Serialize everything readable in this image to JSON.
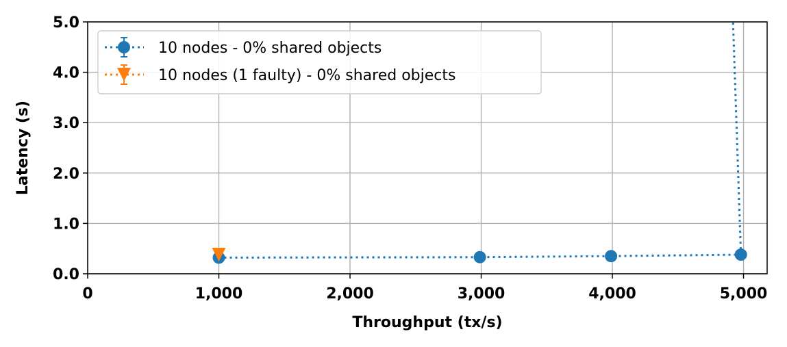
{
  "chart_data": {
    "type": "line",
    "title": "",
    "xlabel": "Throughput (tx/s)",
    "ylabel": "Latency (s)",
    "xlim": [
      0,
      5180
    ],
    "ylim": [
      0,
      5.0
    ],
    "x_ticks": [
      0,
      1000,
      2000,
      3000,
      4000,
      5000
    ],
    "x_tick_labels": [
      "0",
      "1,000",
      "2,000",
      "3,000",
      "4,000",
      "5,000"
    ],
    "y_ticks": [
      0,
      1,
      2,
      3,
      4,
      5
    ],
    "y_tick_labels": [
      "0.0",
      "1.0",
      "2.0",
      "3.0",
      "4.0",
      "5.0"
    ],
    "grid": true,
    "legend_position": "top-left",
    "series": [
      {
        "name": "10 nodes - 0% shared objects",
        "color": "#1f77b4",
        "marker": "circle",
        "linestyle": "dotted",
        "x": [
          1000,
          2990,
          3990,
          4980
        ],
        "y": [
          0.32,
          0.33,
          0.35,
          0.38
        ],
        "tail_line": {
          "x": [
            4980,
            4920
          ],
          "y": [
            0.38,
            5.0
          ]
        }
      },
      {
        "name": "10 nodes (1 faulty) - 0% shared objects",
        "color": "#ff7f0e",
        "marker": "triangle-down",
        "linestyle": "dotted",
        "x": [
          1000
        ],
        "y": [
          0.38
        ]
      }
    ]
  }
}
